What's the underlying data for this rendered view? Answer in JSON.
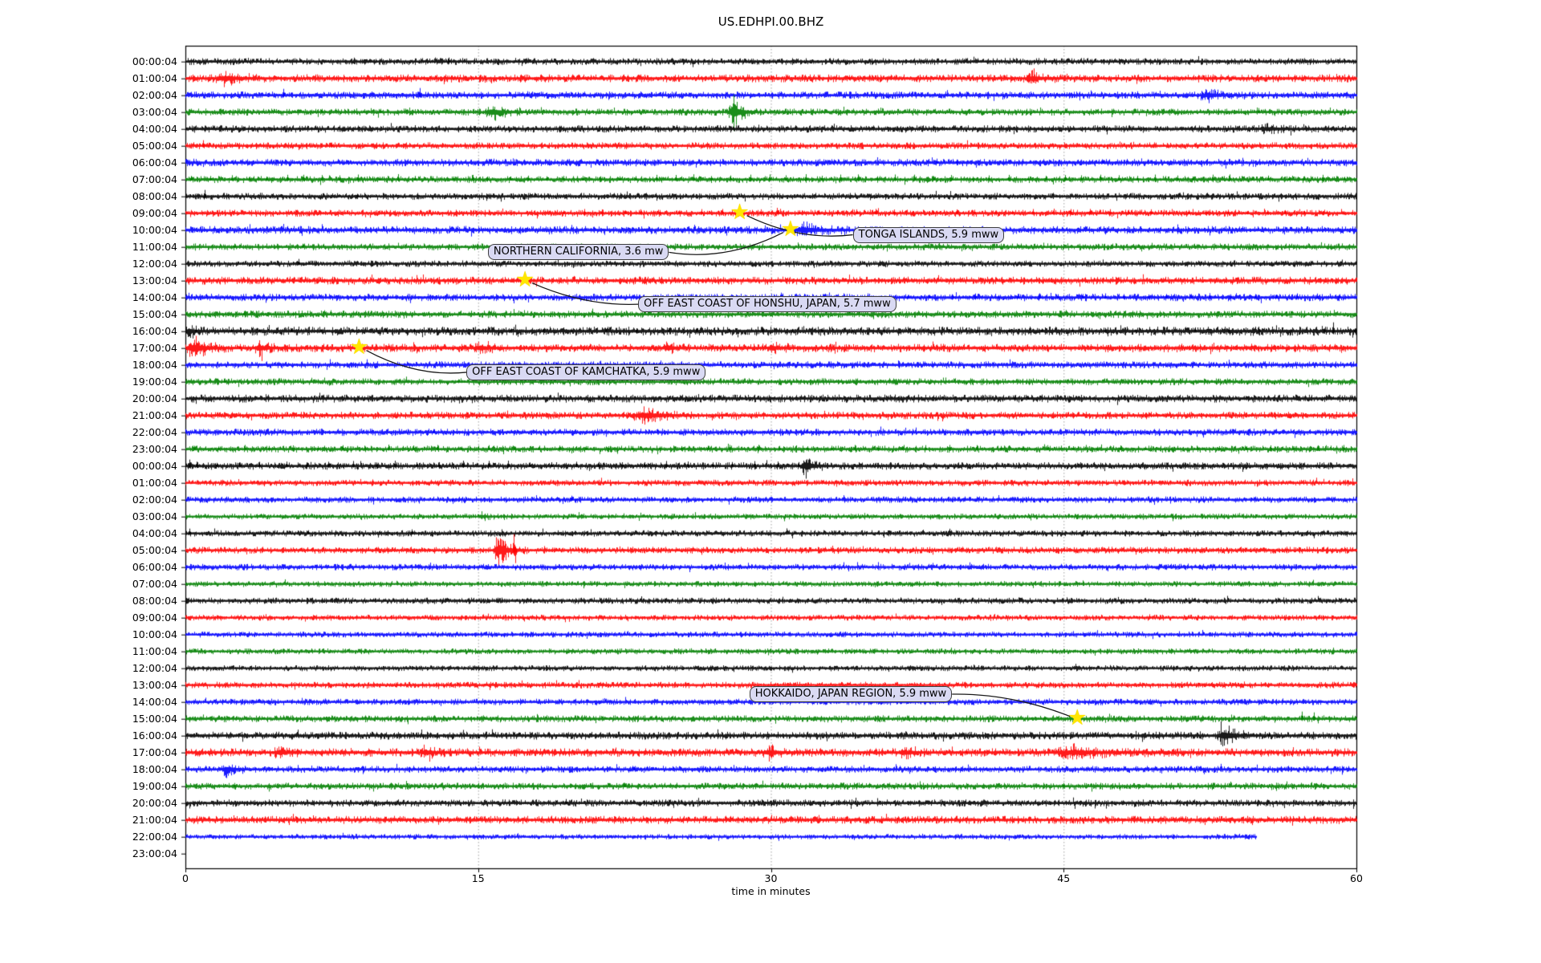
{
  "chart_data": {
    "type": "line",
    "subtype": "seismic-helicorder-dayplot",
    "title": "US.EDHPI.00.BHZ",
    "xlabel": "time in minutes",
    "x_ticks": [
      0,
      15,
      30,
      45,
      60
    ],
    "x_range_minutes": [
      0,
      60
    ],
    "grid": {
      "vertical_dotted_minutes": [
        15,
        30,
        45
      ],
      "color": "#a0a0a0"
    },
    "trace_color_cycle": [
      "#000000",
      "#ff0000",
      "#0000ff",
      "#008000"
    ],
    "rows": [
      {
        "label": "00:00:04",
        "color": "#000000",
        "amp": 2.4,
        "spikes": [
          [
            13.5,
            5
          ]
        ]
      },
      {
        "label": "01:00:04",
        "color": "#ff0000",
        "amp": 2.8,
        "bursts": [
          [
            1.5,
            2.5,
            4
          ],
          [
            43,
            2,
            4
          ]
        ],
        "spikes": [
          [
            34,
            4
          ]
        ]
      },
      {
        "label": "02:00:04",
        "color": "#0000ff",
        "amp": 2.6,
        "spikes": [
          [
            5,
            8
          ],
          [
            12,
            9
          ],
          [
            17.5,
            5
          ]
        ],
        "bursts": [
          [
            52,
            2,
            4
          ]
        ]
      },
      {
        "label": "03:00:04",
        "color": "#008000",
        "amp": 2.4,
        "bursts": [
          [
            15.3,
            2,
            6
          ],
          [
            27.8,
            1.5,
            13
          ]
        ],
        "spikes": [
          [
            7,
            4
          ],
          [
            10,
            4
          ],
          [
            55,
            5
          ]
        ]
      },
      {
        "label": "04:00:04",
        "color": "#000000",
        "amp": 2.6,
        "bursts": [
          [
            55,
            2,
            3
          ]
        ]
      },
      {
        "label": "05:00:04",
        "color": "#ff0000",
        "amp": 2.4,
        "spikes": [
          [
            0.9,
            7
          ],
          [
            7.5,
            4
          ]
        ]
      },
      {
        "label": "06:00:04",
        "color": "#0000ff",
        "amp": 2.6,
        "spikes": [
          [
            38.5,
            5
          ],
          [
            39.5,
            4
          ],
          [
            47,
            3
          ]
        ]
      },
      {
        "label": "07:00:04",
        "color": "#008000",
        "amp": 2.4,
        "periodic": [
          0,
          60,
          0.95,
          5
        ]
      },
      {
        "label": "08:00:04",
        "color": "#000000",
        "amp": 2.4,
        "spikes": [
          [
            1.0,
            8
          ],
          [
            8.8,
            3
          ]
        ]
      },
      {
        "label": "09:00:04",
        "color": "#ff0000",
        "amp": 2.4,
        "periodic": [
          19,
          60,
          1.0,
          4
        ]
      },
      {
        "label": "10:00:04",
        "color": "#0000ff",
        "amp": 2.8,
        "bursts": [
          [
            31.1,
            2.8,
            5
          ]
        ],
        "spikes": [
          [
            36.5,
            3
          ]
        ]
      },
      {
        "label": "11:00:04",
        "color": "#008000",
        "amp": 2.4,
        "spikes": [
          [
            2.5,
            4
          ],
          [
            6,
            4
          ]
        ]
      },
      {
        "label": "12:00:04",
        "color": "#000000",
        "amp": 2.2,
        "spikes": [
          [
            5.8,
            6
          ]
        ]
      },
      {
        "label": "13:00:04",
        "color": "#ff0000",
        "amp": 2.8
      },
      {
        "label": "14:00:04",
        "color": "#0000ff",
        "amp": 2.6,
        "periodic": [
          29,
          60,
          1.1,
          4
        ],
        "spikes": [
          [
            30.5,
            6
          ]
        ]
      },
      {
        "label": "15:00:04",
        "color": "#008000",
        "amp": 2.6,
        "spikes": [
          [
            3,
            3
          ],
          [
            5.5,
            3
          ]
        ]
      },
      {
        "label": "16:00:04",
        "color": "#000000",
        "amp": 3.2,
        "periodic": [
          0,
          60,
          1.6,
          3
        ],
        "spikes": [
          [
            58.8,
            11
          ]
        ],
        "bursts": [
          [
            0,
            1,
            4
          ]
        ]
      },
      {
        "label": "17:00:04",
        "color": "#ff0000",
        "amp": 3.0,
        "bursts": [
          [
            0,
            2.2,
            8
          ],
          [
            3.5,
            1.5,
            5
          ],
          [
            14.8,
            1.5,
            4
          ],
          [
            24.5,
            1.2,
            4
          ],
          [
            29.8,
            1.2,
            4
          ]
        ],
        "spikes": [
          [
            2.8,
            5
          ]
        ]
      },
      {
        "label": "18:00:04",
        "color": "#0000ff",
        "amp": 2.5
      },
      {
        "label": "19:00:04",
        "color": "#008000",
        "amp": 2.4,
        "spikes": [
          [
            2,
            4
          ],
          [
            14,
            3
          ]
        ]
      },
      {
        "label": "20:00:04",
        "color": "#000000",
        "amp": 2.8,
        "spikes": [
          [
            42.5,
            4
          ],
          [
            43.2,
            3
          ]
        ]
      },
      {
        "label": "21:00:04",
        "color": "#ff0000",
        "amp": 2.6,
        "bursts": [
          [
            22.8,
            3.5,
            5
          ]
        ]
      },
      {
        "label": "22:00:04",
        "color": "#0000ff",
        "amp": 2.5,
        "spikes": [
          [
            12.7,
            4
          ],
          [
            47.5,
            3
          ]
        ]
      },
      {
        "label": "23:00:04",
        "color": "#008000",
        "amp": 2.4,
        "periodic": [
          0,
          60,
          1.25,
          4
        ]
      },
      {
        "label": "00:00:04",
        "color": "#000000",
        "amp": 2.6,
        "periodic": [
          0,
          32,
          1.15,
          5
        ],
        "bursts": [
          [
            31.5,
            1.5,
            8
          ]
        ],
        "spikes": [
          [
            0.2,
            8
          ]
        ]
      },
      {
        "label": "01:00:04",
        "color": "#ff0000",
        "amp": 2.2
      },
      {
        "label": "02:00:04",
        "color": "#0000ff",
        "amp": 2.2,
        "spikes": [
          [
            13.7,
            -5
          ],
          [
            19.8,
            5
          ],
          [
            20.0,
            -4
          ]
        ]
      },
      {
        "label": "03:00:04",
        "color": "#008000",
        "amp": 2.0,
        "bursts": [
          [
            15,
            0.8,
            3
          ]
        ]
      },
      {
        "label": "04:00:04",
        "color": "#000000",
        "amp": 2.2,
        "spikes": [
          [
            0.2,
            6
          ],
          [
            6.3,
            4
          ],
          [
            11.6,
            5
          ]
        ]
      },
      {
        "label": "05:00:04",
        "color": "#ff0000",
        "amp": 2.4,
        "bursts": [
          [
            15.7,
            1.8,
            12
          ]
        ],
        "spikes": [
          [
            16.8,
            20
          ],
          [
            16.9,
            -16
          ]
        ]
      },
      {
        "label": "06:00:04",
        "color": "#0000ff",
        "amp": 2.2,
        "spikes": [
          [
            16.9,
            -4
          ]
        ]
      },
      {
        "label": "07:00:04",
        "color": "#008000",
        "amp": 2.0
      },
      {
        "label": "08:00:04",
        "color": "#000000",
        "amp": 2.2
      },
      {
        "label": "09:00:04",
        "color": "#ff0000",
        "amp": 2.0
      },
      {
        "label": "10:00:04",
        "color": "#0000ff",
        "amp": 2.0
      },
      {
        "label": "11:00:04",
        "color": "#008000",
        "amp": 2.0
      },
      {
        "label": "12:00:04",
        "color": "#000000",
        "amp": 2.0
      },
      {
        "label": "13:00:04",
        "color": "#ff0000",
        "amp": 2.2
      },
      {
        "label": "14:00:04",
        "color": "#0000ff",
        "amp": 2.2
      },
      {
        "label": "15:00:04",
        "color": "#008000",
        "amp": 2.4,
        "spikes": [
          [
            44,
            3
          ],
          [
            57.2,
            9
          ],
          [
            57.8,
            8
          ]
        ]
      },
      {
        "label": "16:00:04",
        "color": "#000000",
        "amp": 2.8,
        "bursts": [
          [
            52.8,
            2.2,
            7
          ]
        ],
        "spikes": [
          [
            44.5,
            4
          ],
          [
            55.5,
            4
          ]
        ]
      },
      {
        "label": "17:00:04",
        "color": "#ff0000",
        "amp": 3.0,
        "bursts": [
          [
            4.5,
            1.5,
            4
          ],
          [
            12,
            1.5,
            4
          ],
          [
            29.5,
            2,
            4
          ],
          [
            36.5,
            1.5,
            4
          ],
          [
            44.5,
            5,
            4
          ]
        ],
        "spikes": [
          [
            40,
            4
          ]
        ]
      },
      {
        "label": "18:00:04",
        "color": "#0000ff",
        "amp": 2.4,
        "bursts": [
          [
            1.8,
            1.5,
            5
          ]
        ],
        "spikes": [
          [
            23,
            3
          ]
        ]
      },
      {
        "label": "19:00:04",
        "color": "#008000",
        "amp": 2.4,
        "spikes": [
          [
            2.5,
            4
          ],
          [
            22.5,
            4
          ],
          [
            31,
            3
          ],
          [
            45,
            3
          ]
        ]
      },
      {
        "label": "20:00:04",
        "color": "#000000",
        "amp": 2.5,
        "spikes": [
          [
            19.5,
            5
          ],
          [
            24,
            4
          ]
        ]
      },
      {
        "label": "21:00:04",
        "color": "#ff0000",
        "amp": 2.8
      },
      {
        "label": "22:00:04",
        "color": "#0000ff",
        "amp": 1.8,
        "end": 54.9
      },
      {
        "label": "23:00:04",
        "color": "#008000",
        "amp": 0,
        "end": 0
      }
    ],
    "events": [
      {
        "label": "TONGA ISLANDS, 5.9 mww",
        "row": 9,
        "minute": 28.4,
        "box_minute": 34.2,
        "box_row": 10.28,
        "connect_side": "left"
      },
      {
        "label": "NORTHERN CALIFORNIA, 3.6 mw",
        "row": 10,
        "minute": 31.0,
        "box_minute": 15.5,
        "box_row": 11.32,
        "connect_side": "right"
      },
      {
        "label": "OFF EAST COAST OF HONSHU, JAPAN, 5.7 mww",
        "row": 13,
        "minute": 17.4,
        "box_minute": 23.2,
        "box_row": 14.4,
        "connect_side": "left"
      },
      {
        "label": "OFF EAST COAST OF KAMCHATKA, 5.9 mww",
        "row": 17,
        "minute": 8.9,
        "box_minute": 14.4,
        "box_row": 18.44,
        "connect_side": "left"
      },
      {
        "label": "HOKKAIDO, JAPAN REGION, 5.9 mww",
        "row": 39,
        "minute": 45.7,
        "box_minute": 28.9,
        "box_row": 37.54,
        "connect_side": "right"
      }
    ],
    "marker": {
      "shape": "star",
      "color": "#ffe600"
    },
    "annotation_style": {
      "background": "#d9d9f3",
      "border": "#3f3f3f"
    }
  }
}
